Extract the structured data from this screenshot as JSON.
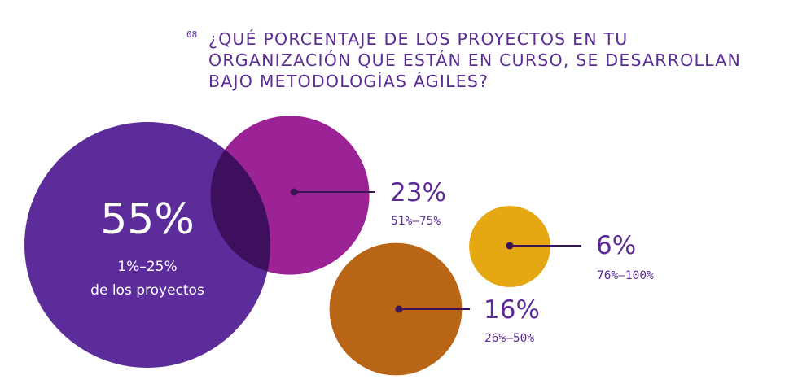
{
  "question_number": "08",
  "title_lines": [
    "¿QUÉ PORCENTAJE DE LOS PROYECTOS EN TU",
    "ORGANIZACIÓN QUE ESTÁN EN CURSO, SE DESARROLLAN",
    "BAJO METODOLOGÍAS ÁGILES?"
  ],
  "colors": {
    "text_purple": "#5b2c96",
    "overlap": "#3d0f5c",
    "leader_line": "#3a1552"
  },
  "chart_data": {
    "type": "bubble",
    "title": "¿QUÉ PORCENTAJE DE LOS PROYECTOS EN TU ORGANIZACIÓN QUE ESTÁN EN CURSO, SE DESARROLLAN BAJO METODOLOGÍAS ÁGILES?",
    "unit": "%",
    "series": [
      {
        "range": "1%–25%",
        "sublabel": "de los proyectos",
        "value": 55,
        "value_label": "55%",
        "color": "#5b2c9a"
      },
      {
        "range": "51%–75%",
        "value": 23,
        "value_label": "23%",
        "color": "#9b2396"
      },
      {
        "range": "76%–100%",
        "value": 6,
        "value_label": "6%",
        "color": "#e5a812"
      },
      {
        "range": "26%–50%",
        "value": 16,
        "value_label": "16%",
        "color": "#b86515"
      }
    ]
  }
}
